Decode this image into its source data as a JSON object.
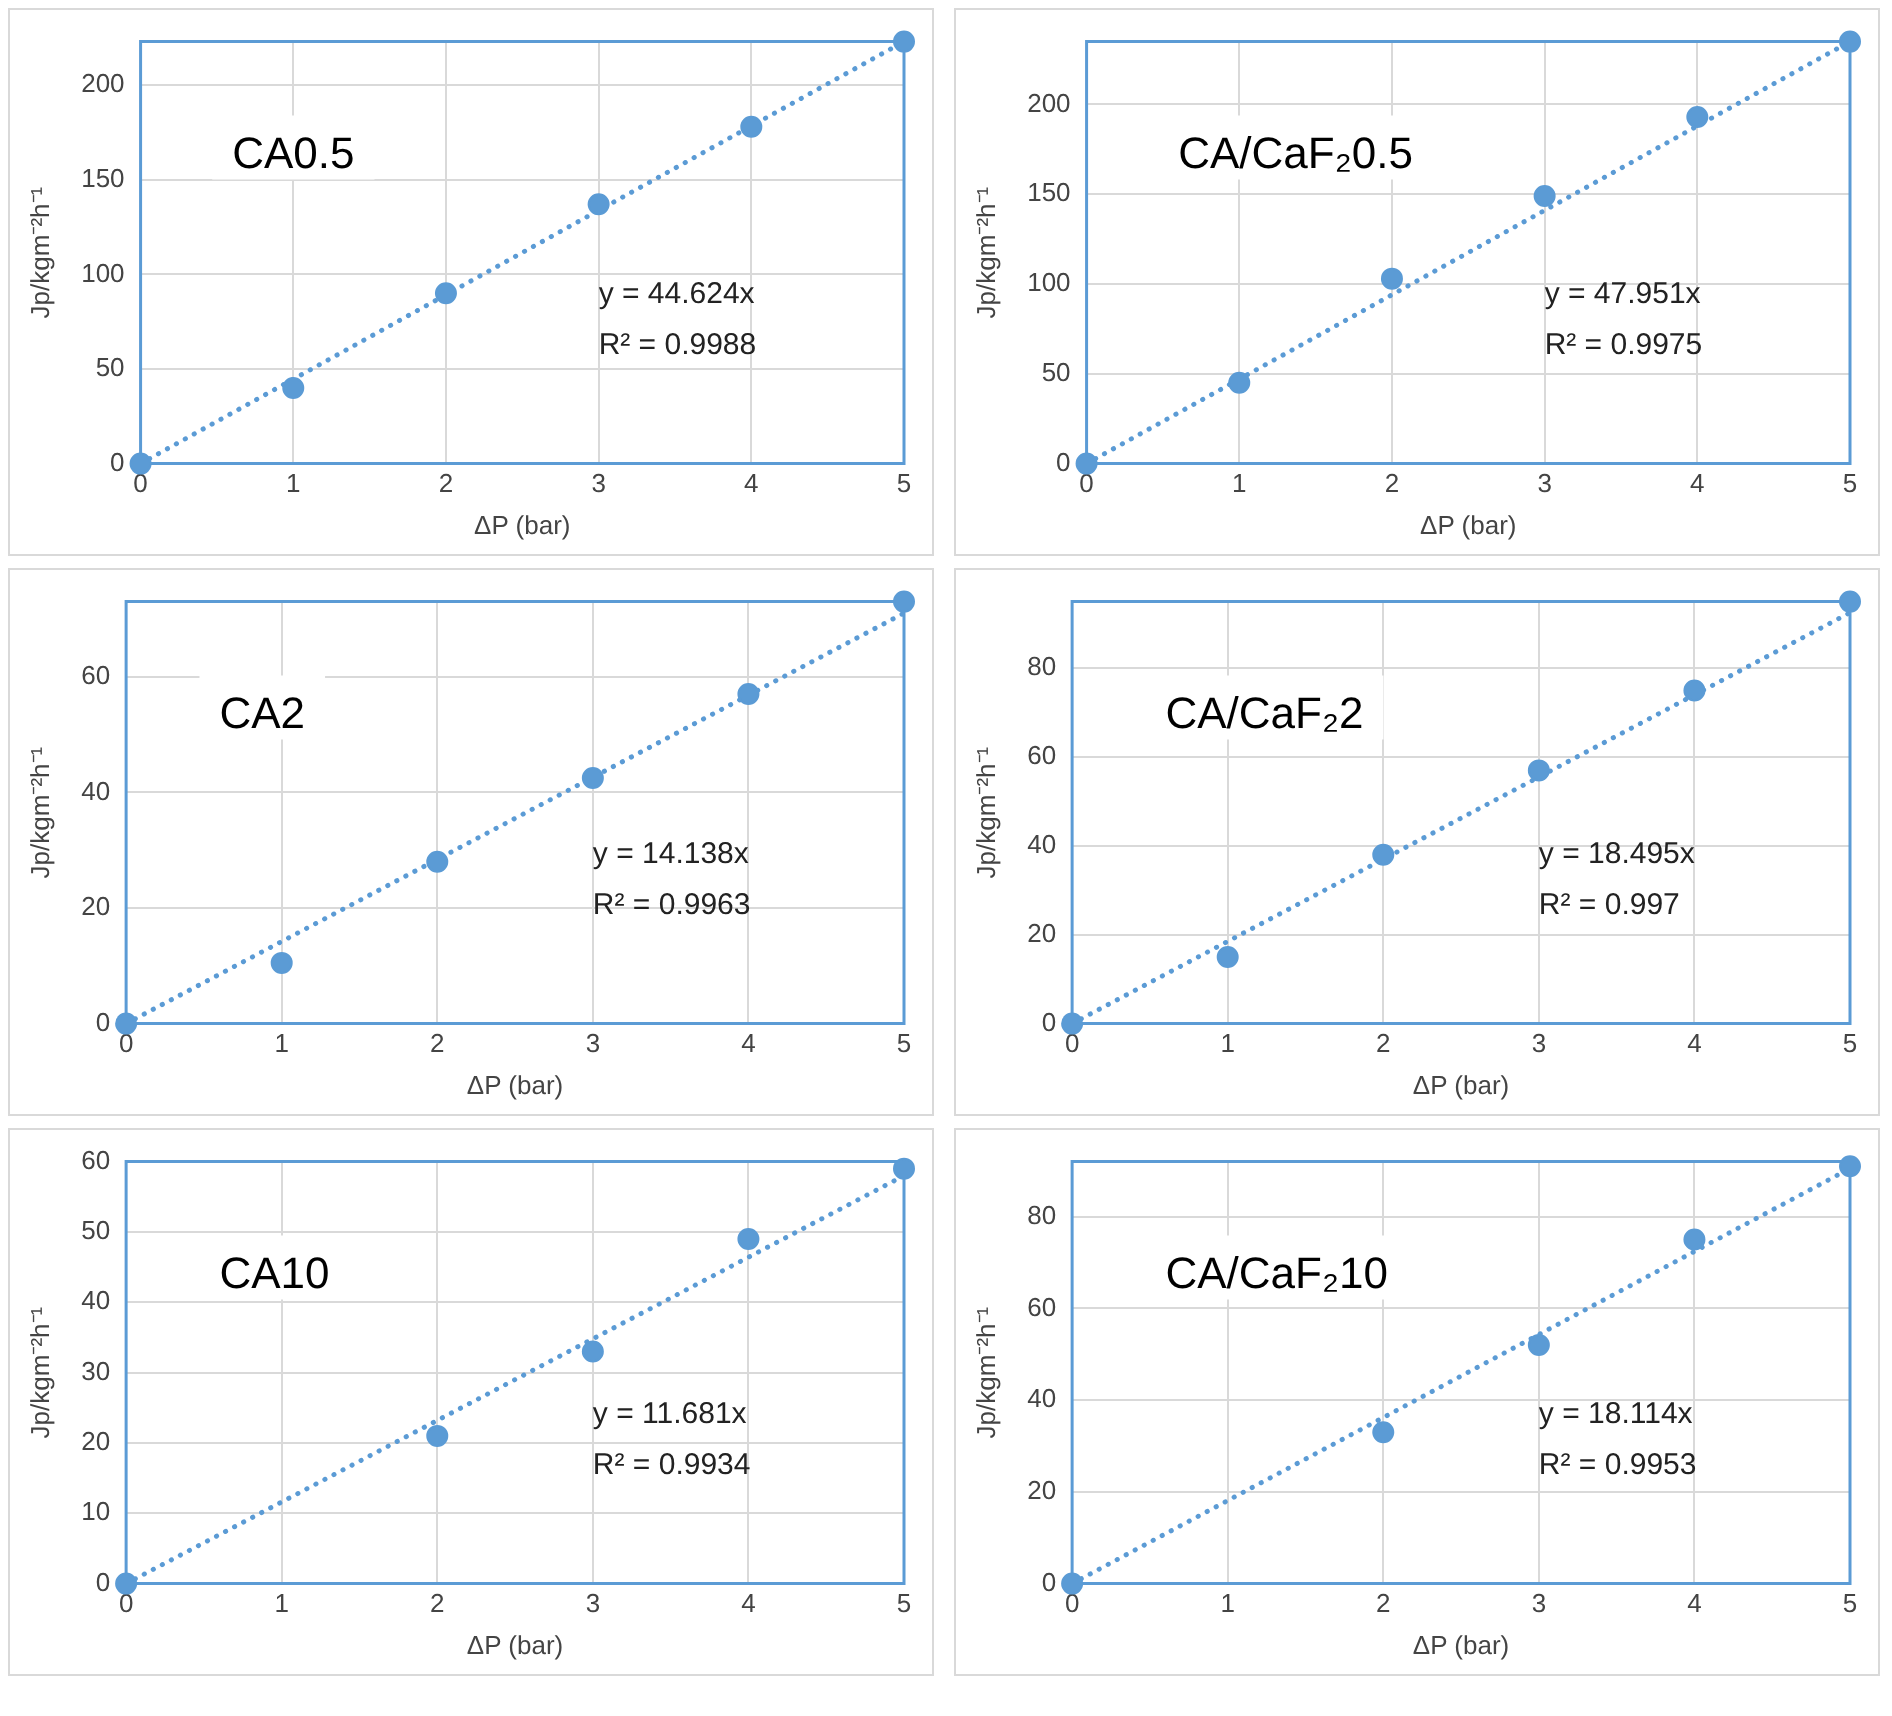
{
  "chart_data": [
    {
      "type": "scatter",
      "title": "CA0.5",
      "xlabel": "ΔP (bar)",
      "ylabel": "Jp/kgm⁻²h⁻¹",
      "xlim": [
        0,
        5
      ],
      "xticks": [
        0,
        1,
        2,
        3,
        4,
        5
      ],
      "ylim": [
        0,
        223
      ],
      "yticks": [
        0,
        50,
        100,
        150,
        200
      ],
      "grid": true,
      "marker": "circle",
      "annotations": [
        "y = 44.624x",
        "R² = 0.9988"
      ],
      "series": [
        {
          "type": "scatter",
          "color": "#5b9bd5",
          "x": [
            0,
            1,
            2,
            3,
            4,
            5
          ],
          "values": [
            0,
            40,
            90,
            137,
            178,
            223
          ]
        },
        {
          "type": "line",
          "color": "#5b9bd5",
          "line_style": "dotted",
          "marker": "none",
          "x": [
            0,
            5
          ],
          "values": [
            0,
            223
          ]
        }
      ]
    },
    {
      "type": "scatter",
      "title": "CA/CaF₂0.5",
      "xlabel": "ΔP (bar)",
      "ylabel": "Jp/kgm⁻²h⁻¹",
      "xlim": [
        0,
        5
      ],
      "xticks": [
        0,
        1,
        2,
        3,
        4,
        5
      ],
      "ylim": [
        0,
        235
      ],
      "yticks": [
        0,
        50,
        100,
        150,
        200
      ],
      "grid": true,
      "marker": "circle",
      "annotations": [
        "y = 47.951x",
        "R² = 0.9975"
      ],
      "series": [
        {
          "type": "scatter",
          "color": "#5b9bd5",
          "x": [
            0,
            1,
            2,
            3,
            4,
            5
          ],
          "values": [
            0,
            45,
            103,
            149,
            193,
            235
          ]
        },
        {
          "type": "line",
          "color": "#5b9bd5",
          "line_style": "dotted",
          "marker": "none",
          "x": [
            0,
            5
          ],
          "values": [
            0,
            235
          ]
        }
      ]
    },
    {
      "type": "scatter",
      "title": "CA2",
      "xlabel": "ΔP (bar)",
      "ylabel": "Jp/kgm⁻²h⁻¹",
      "xlim": [
        0,
        5
      ],
      "xticks": [
        0,
        1,
        2,
        3,
        4,
        5
      ],
      "ylim": [
        0,
        73
      ],
      "yticks": [
        0,
        20,
        40,
        60
      ],
      "grid": true,
      "marker": "circle",
      "annotations": [
        "y = 14.138x",
        "R² = 0.9963"
      ],
      "series": [
        {
          "type": "scatter",
          "color": "#5b9bd5",
          "x": [
            0,
            1,
            2,
            3,
            4,
            5
          ],
          "values": [
            0,
            10.5,
            28,
            42.5,
            57,
            73
          ]
        },
        {
          "type": "line",
          "color": "#5b9bd5",
          "line_style": "dotted",
          "marker": "none",
          "x": [
            0,
            5
          ],
          "values": [
            0,
            71
          ]
        }
      ]
    },
    {
      "type": "scatter",
      "title": "CA/CaF₂2",
      "xlabel": "ΔP (bar)",
      "ylabel": "Jp/kgm⁻²h⁻¹",
      "xlim": [
        0,
        5
      ],
      "xticks": [
        0,
        1,
        2,
        3,
        4,
        5
      ],
      "ylim": [
        0,
        95
      ],
      "yticks": [
        0,
        20,
        40,
        60,
        80
      ],
      "grid": true,
      "marker": "circle",
      "annotations": [
        "y = 18.495x",
        "R² = 0.997"
      ],
      "series": [
        {
          "type": "scatter",
          "color": "#5b9bd5",
          "x": [
            0,
            1,
            2,
            3,
            4,
            5
          ],
          "values": [
            0,
            15,
            38,
            57,
            75,
            95
          ]
        },
        {
          "type": "line",
          "color": "#5b9bd5",
          "line_style": "dotted",
          "marker": "none",
          "x": [
            0,
            5
          ],
          "values": [
            0,
            92.5
          ]
        }
      ]
    },
    {
      "type": "scatter",
      "title": "CA10",
      "xlabel": "ΔP (bar)",
      "ylabel": "Jp/kgm⁻²h⁻¹",
      "xlim": [
        0,
        5
      ],
      "xticks": [
        0,
        1,
        2,
        3,
        4,
        5
      ],
      "ylim": [
        0,
        60
      ],
      "yticks": [
        0,
        10,
        20,
        30,
        40,
        50,
        60
      ],
      "grid": true,
      "marker": "circle",
      "annotations": [
        "y = 11.681x",
        "R² = 0.9934"
      ],
      "series": [
        {
          "type": "scatter",
          "color": "#5b9bd5",
          "x": [
            0,
            2,
            3,
            4,
            5
          ],
          "values": [
            0,
            21,
            33,
            49,
            59
          ]
        },
        {
          "type": "line",
          "color": "#5b9bd5",
          "line_style": "dotted",
          "marker": "none",
          "x": [
            0,
            5
          ],
          "values": [
            0,
            58
          ]
        }
      ]
    },
    {
      "type": "scatter",
      "title": "CA/CaF₂10",
      "xlabel": "ΔP (bar)",
      "ylabel": "Jp/kgm⁻²h⁻¹",
      "xlim": [
        0,
        5
      ],
      "xticks": [
        0,
        1,
        2,
        3,
        4,
        5
      ],
      "ylim": [
        0,
        92
      ],
      "yticks": [
        0,
        20,
        40,
        60,
        80
      ],
      "grid": true,
      "marker": "circle",
      "annotations": [
        "y = 18.114x",
        "R² = 0.9953"
      ],
      "series": [
        {
          "type": "scatter",
          "color": "#5b9bd5",
          "x": [
            0,
            2,
            3,
            4,
            5
          ],
          "values": [
            0,
            33,
            52,
            75,
            91
          ]
        },
        {
          "type": "line",
          "color": "#5b9bd5",
          "line_style": "dotted",
          "marker": "none",
          "x": [
            0,
            5
          ],
          "values": [
            0,
            90.5
          ]
        }
      ]
    }
  ]
}
